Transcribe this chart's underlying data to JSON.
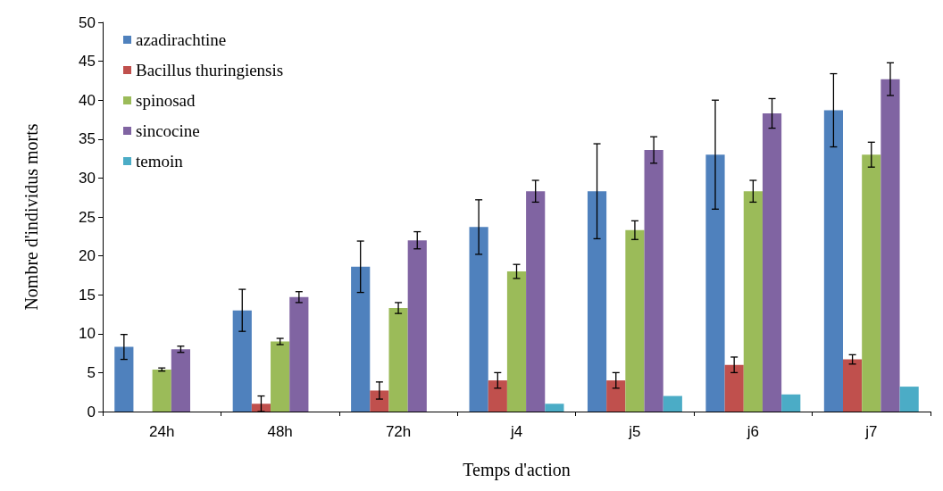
{
  "chart_data": {
    "type": "bar",
    "xlabel": "Temps d'action",
    "ylabel": "Nombre d'individus morts",
    "categories": [
      "24h",
      "48h",
      "72h",
      "j4",
      "j5",
      "j6",
      "j7"
    ],
    "series": [
      {
        "name": "azadirachtine",
        "color": "#4f81bd",
        "values": [
          8.3,
          13,
          18.6,
          23.7,
          28.3,
          33,
          38.7
        ],
        "errors": [
          1.6,
          2.7,
          3.3,
          3.5,
          6.1,
          7,
          4.7
        ]
      },
      {
        "name": "Bacillus thuringiensis",
        "color": "#c0504d",
        "values": [
          0,
          1,
          2.7,
          4,
          4,
          6,
          6.7
        ],
        "errors": [
          null,
          1,
          1.1,
          1,
          1,
          1,
          0.6
        ]
      },
      {
        "name": "spinosad",
        "color": "#9bbb59",
        "values": [
          5.4,
          9,
          13.3,
          18,
          23.3,
          28.3,
          33
        ],
        "errors": [
          0.2,
          0.4,
          0.7,
          0.9,
          1.2,
          1.4,
          1.6
        ]
      },
      {
        "name": "sincocine",
        "color": "#8064a2",
        "values": [
          8,
          14.7,
          22,
          28.3,
          33.6,
          38.3,
          42.7
        ],
        "errors": [
          0.4,
          0.7,
          1.1,
          1.4,
          1.7,
          1.9,
          2.1
        ]
      },
      {
        "name": "temoin",
        "color": "#4bacc6",
        "values": [
          0,
          0,
          0,
          1,
          2,
          2.2,
          3.2
        ]
      }
    ],
    "ylim": [
      0,
      50
    ],
    "yticks": [
      0,
      5,
      10,
      15,
      20,
      25,
      30,
      35,
      40,
      45,
      50
    ],
    "grid": false,
    "legend": "top left"
  }
}
